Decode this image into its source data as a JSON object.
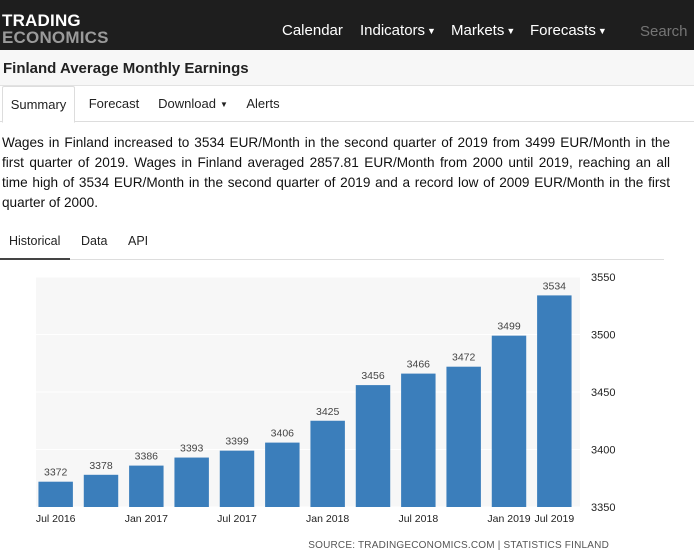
{
  "logo": {
    "line1": "TRADING",
    "line2": "ECONOMICS"
  },
  "nav": {
    "calendar": "Calendar",
    "indicators": "Indicators",
    "markets": "Markets",
    "forecasts": "Forecasts"
  },
  "search": {
    "placeholder": "Search"
  },
  "page": {
    "title": "Finland Average Monthly Earnings"
  },
  "tabs": {
    "summary": "Summary",
    "forecast": "Forecast",
    "download": "Download",
    "alerts": "Alerts"
  },
  "summary_text": "Wages in Finland increased to 3534 EUR/Month in the second quarter of 2019 from 3499 EUR/Month in the first quarter of 2019. Wages in Finland averaged 2857.81 EUR/Month from 2000 until 2019, reaching an all time high of 3534 EUR/Month in the second quarter of 2019 and a record low of 2009 EUR/Month in the first quarter of 2000.",
  "subtabs": {
    "historical": "Historical",
    "data": "Data",
    "api": "API"
  },
  "source": "SOURCE: TRADINGECONOMICS.COM | STATISTICS FINLAND",
  "colors": {
    "bar": "#3b7ebb",
    "topbar": "#1e1e1e"
  },
  "chart_data": {
    "type": "bar",
    "categories": [
      "Q3 2016",
      "Q4 2016",
      "Q1 2017",
      "Q2 2017",
      "Q3 2017",
      "Q4 2017",
      "Q1 2018",
      "Q2 2018",
      "Q3 2018",
      "Q4 2018",
      "Q1 2019",
      "Q2 2019"
    ],
    "values": [
      3372,
      3378,
      3386,
      3393,
      3399,
      3406,
      3425,
      3456,
      3466,
      3472,
      3499,
      3534
    ],
    "x_tick_labels": [
      "Jul 2016",
      "Jan 2017",
      "Jul 2017",
      "Jan 2018",
      "Jul 2018",
      "Jan 2019",
      "Jul 2019"
    ],
    "y_ticks": [
      3350,
      3400,
      3450,
      3500,
      3550
    ],
    "ylim": [
      3350,
      3550
    ],
    "y_axis_side": "right",
    "grid": "horizontal",
    "title": "",
    "xlabel": "",
    "ylabel": ""
  }
}
